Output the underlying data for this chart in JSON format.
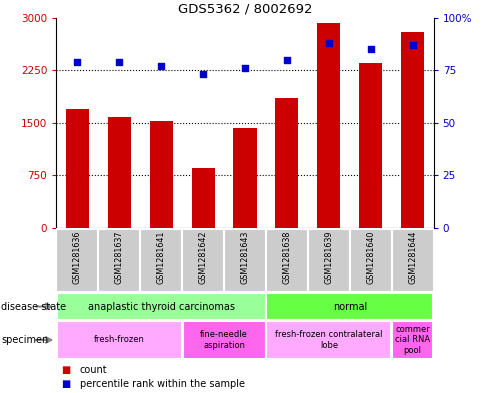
{
  "title": "GDS5362 / 8002692",
  "samples": [
    "GSM1281636",
    "GSM1281637",
    "GSM1281641",
    "GSM1281642",
    "GSM1281643",
    "GSM1281638",
    "GSM1281639",
    "GSM1281640",
    "GSM1281644"
  ],
  "counts": [
    1700,
    1580,
    1530,
    850,
    1420,
    1850,
    2930,
    2350,
    2800
  ],
  "percentiles": [
    79,
    79,
    77,
    73,
    76,
    80,
    88,
    85,
    87
  ],
  "ylim_left": [
    0,
    3000
  ],
  "ylim_right": [
    0,
    100
  ],
  "yticks_left": [
    0,
    750,
    1500,
    2250,
    3000
  ],
  "yticks_right": [
    0,
    25,
    50,
    75,
    100
  ],
  "ytick_right_labels": [
    "0",
    "25",
    "50",
    "75",
    "100%"
  ],
  "bar_color": "#cc0000",
  "dot_color": "#0000cc",
  "gridline_vals": [
    750,
    1500,
    2250
  ],
  "disease_state_groups": [
    {
      "label": "anaplastic thyroid carcinomas",
      "start": 0,
      "end": 5,
      "color": "#99ff99"
    },
    {
      "label": "normal",
      "start": 5,
      "end": 9,
      "color": "#66ff44"
    }
  ],
  "specimen_groups": [
    {
      "label": "fresh-frozen",
      "start": 0,
      "end": 3,
      "color": "#ffaaff"
    },
    {
      "label": "fine-needle\naspiration",
      "start": 3,
      "end": 5,
      "color": "#ff66ee"
    },
    {
      "label": "fresh-frozen contralateral\nlobe",
      "start": 5,
      "end": 8,
      "color": "#ffaaff"
    },
    {
      "label": "commer\ncial RNA\npool",
      "start": 8,
      "end": 9,
      "color": "#ff66ee"
    }
  ],
  "legend_count_color": "#cc0000",
  "legend_percentile_color": "#0000cc",
  "bg_color": "#ffffff",
  "tick_label_color_left": "#cc0000",
  "tick_label_color_right": "#0000cc",
  "label_box_color": "#cccccc",
  "bar_width": 0.55
}
